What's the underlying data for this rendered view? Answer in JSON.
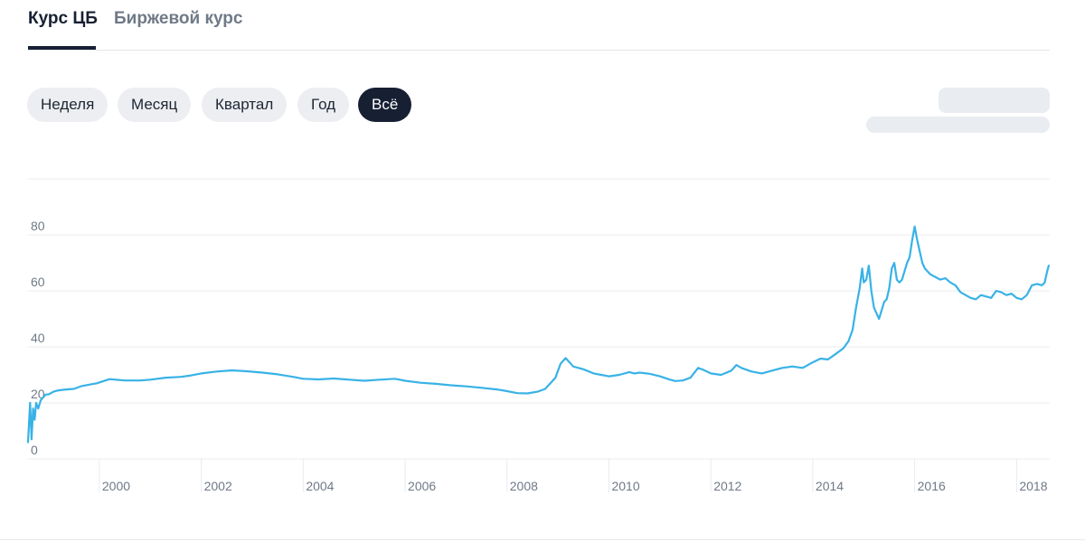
{
  "tabs": {
    "items": [
      "Курс ЦБ",
      "Биржевой курс"
    ],
    "active_index": 0
  },
  "periods": {
    "items": [
      "Неделя",
      "Месяц",
      "Квартал",
      "Год",
      "Всё"
    ],
    "active_index": 4
  },
  "colors": {
    "line": "#38b2e6",
    "active_bg": "#172033",
    "pill_bg": "#eceef1",
    "grid": "#e8ebef"
  },
  "chart_data": {
    "type": "line",
    "title": "",
    "xlabel": "",
    "ylabel": "",
    "xlim": [
      1998.6,
      2018.65
    ],
    "ylim": [
      0,
      100
    ],
    "y_ticks": [
      0,
      20,
      40,
      60,
      80
    ],
    "y_tick_labels": [
      "0",
      "20",
      "40",
      "60",
      "80"
    ],
    "x_ticks": [
      2000,
      2002,
      2004,
      2006,
      2008,
      2010,
      2012,
      2014,
      2016,
      2018
    ],
    "x_tick_labels": [
      "2000",
      "2002",
      "2004",
      "2006",
      "2008",
      "2010",
      "2012",
      "2014",
      "2016",
      "2018"
    ],
    "grid": true,
    "legend": "none",
    "series": [
      {
        "x": [
          1998.6,
          1998.64,
          1998.67,
          1998.7,
          1998.73,
          1998.76,
          1998.8,
          1998.85,
          1998.9,
          1998.95,
          1999.0,
          1999.1,
          1999.2,
          1999.35,
          1999.5,
          1999.65,
          1999.8,
          1999.95,
          2000.2,
          2000.5,
          2000.8,
          2001.0,
          2001.3,
          2001.6,
          2001.8,
          2002.0,
          2002.3,
          2002.6,
          2002.9,
          2003.2,
          2003.5,
          2003.8,
          2004.0,
          2004.3,
          2004.6,
          2004.9,
          2005.2,
          2005.5,
          2005.8,
          2006.0,
          2006.3,
          2006.6,
          2006.9,
          2007.2,
          2007.5,
          2007.8,
          2008.0,
          2008.2,
          2008.4,
          2008.6,
          2008.75,
          2008.85,
          2008.95,
          2009.05,
          2009.15,
          2009.3,
          2009.5,
          2009.7,
          2009.85,
          2010.0,
          2010.2,
          2010.4,
          2010.5,
          2010.6,
          2010.8,
          2011.0,
          2011.2,
          2011.3,
          2011.45,
          2011.6,
          2011.75,
          2011.85,
          2012.0,
          2012.2,
          2012.4,
          2012.5,
          2012.6,
          2012.8,
          2013.0,
          2013.2,
          2013.4,
          2013.6,
          2013.8,
          2014.0,
          2014.15,
          2014.3,
          2014.45,
          2014.6,
          2014.7,
          2014.78,
          2014.85,
          2014.92,
          2014.97,
          2015.0,
          2015.05,
          2015.1,
          2015.15,
          2015.2,
          2015.25,
          2015.3,
          2015.35,
          2015.4,
          2015.45,
          2015.5,
          2015.55,
          2015.6,
          2015.65,
          2015.7,
          2015.75,
          2015.8,
          2015.85,
          2015.9,
          2015.95,
          2016.0,
          2016.05,
          2016.1,
          2016.15,
          2016.2,
          2016.3,
          2016.4,
          2016.5,
          2016.6,
          2016.7,
          2016.8,
          2016.9,
          2017.0,
          2017.1,
          2017.2,
          2017.3,
          2017.4,
          2017.5,
          2017.6,
          2017.7,
          2017.8,
          2017.9,
          2018.0,
          2018.1,
          2018.2,
          2018.3,
          2018.4,
          2018.5,
          2018.55,
          2018.6,
          2018.63
        ],
        "y": [
          6,
          20,
          7,
          18,
          14,
          20,
          18,
          21,
          22,
          23,
          23,
          24,
          24.5,
          24.8,
          25,
          26,
          26.5,
          27,
          28.5,
          28,
          28,
          28.3,
          29,
          29.3,
          29.8,
          30.5,
          31.2,
          31.6,
          31.3,
          30.8,
          30.2,
          29.3,
          28.6,
          28.4,
          28.7,
          28.3,
          27.9,
          28.3,
          28.6,
          27.9,
          27.2,
          26.8,
          26.3,
          25.9,
          25.4,
          24.8,
          24.2,
          23.5,
          23.4,
          24,
          25,
          27,
          29,
          34,
          36,
          33,
          32,
          30.5,
          30,
          29.5,
          30,
          31,
          30.5,
          30.8,
          30.4,
          29.5,
          28.3,
          27.8,
          28,
          29,
          32.5,
          31.8,
          30.5,
          30,
          31.5,
          33.5,
          32.5,
          31.2,
          30.5,
          31.5,
          32.5,
          33,
          32.5,
          34.5,
          35.8,
          35.5,
          37.5,
          39.5,
          42,
          46,
          54,
          61,
          68,
          63,
          64,
          69,
          60,
          54,
          52,
          50,
          53,
          56,
          57,
          61,
          68,
          70,
          64,
          63,
          64,
          67,
          70,
          72,
          78,
          83,
          78,
          74,
          70,
          68,
          66,
          65,
          64,
          64.5,
          63,
          62,
          59.5,
          58.5,
          57.5,
          57,
          58.5,
          58,
          57.5,
          60,
          59.5,
          58.5,
          59,
          57.5,
          57,
          58.5,
          62,
          62.5,
          62,
          63,
          67,
          69
        ]
      }
    ]
  }
}
